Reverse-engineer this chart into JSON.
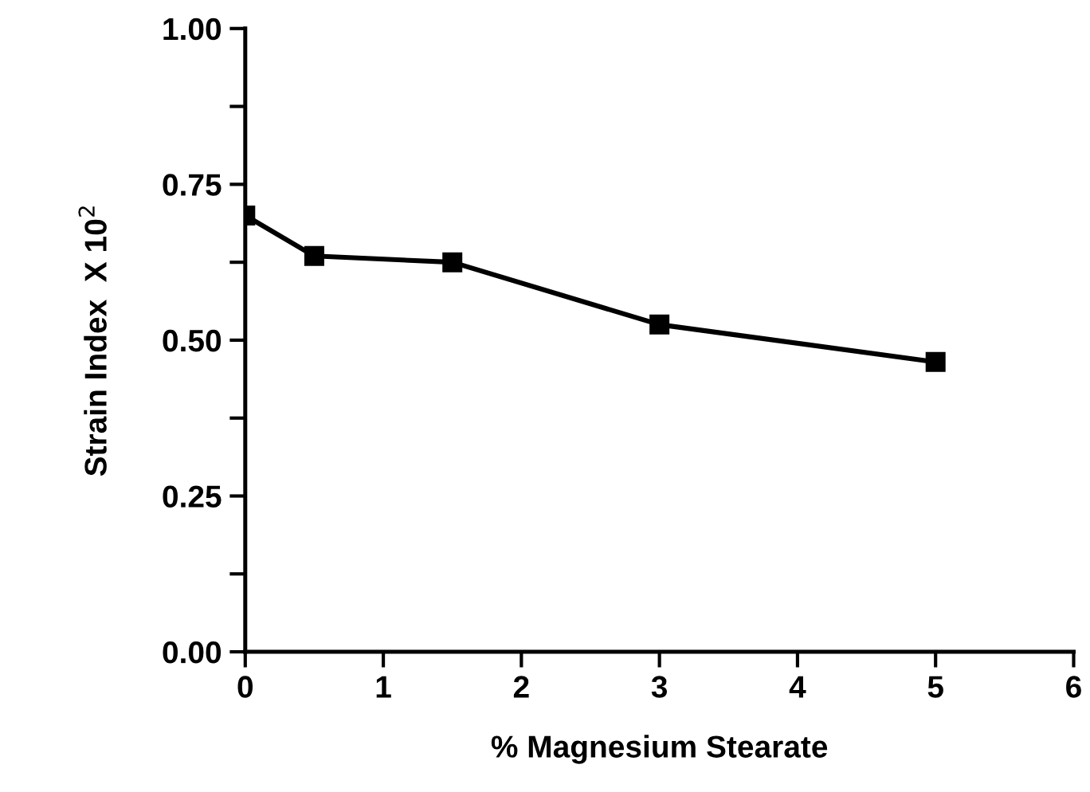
{
  "chart_data": {
    "type": "line",
    "xlabel": "% Magnesium Stearate",
    "ylabel": "Strain Index  X 10$^{2}$",
    "x": [
      0,
      0.5,
      1.5,
      3,
      5
    ],
    "series": [
      {
        "color": "#000000",
        "values": [
          0.7,
          0.635,
          0.625,
          0.525,
          0.465
        ]
      }
    ],
    "xlim": [
      0,
      6
    ],
    "xticks": [
      0,
      1,
      2,
      3,
      4,
      5,
      6
    ],
    "ylim": [
      0,
      1
    ],
    "yticks": [
      {
        "value": 0,
        "label": "0.00"
      },
      {
        "value": 0.125,
        "label": null
      },
      {
        "value": 0.25,
        "label": "0.25"
      },
      {
        "value": 0.375,
        "label": null
      },
      {
        "value": 0.5,
        "label": "0.50"
      },
      {
        "value": 0.625,
        "label": null
      },
      {
        "value": 0.75,
        "label": "0.75"
      },
      {
        "value": 0.875,
        "label": null
      },
      {
        "value": 1,
        "label": "1.00"
      }
    ],
    "marker": "square",
    "line_style": "solid",
    "grid": false,
    "legend": false
  }
}
